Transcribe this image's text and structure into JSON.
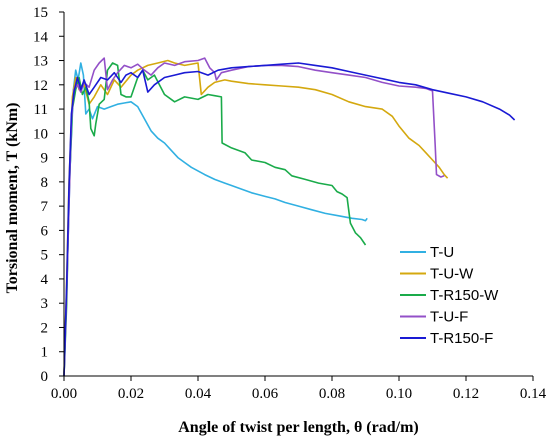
{
  "chart_data": {
    "type": "line",
    "xlabel": "Angle of twist per length, θ (rad/m)",
    "ylabel": "Torsional moment, T (kNm)",
    "xlim": [
      0,
      0.14
    ],
    "ylim": [
      0,
      15
    ],
    "x_ticks": [
      "0.00",
      "0.02",
      "0.04",
      "0.06",
      "0.08",
      "0.10",
      "0.12",
      "0.14"
    ],
    "y_ticks": [
      "0",
      "1",
      "2",
      "3",
      "4",
      "5",
      "6",
      "7",
      "8",
      "9",
      "10",
      "11",
      "12",
      "13",
      "14",
      "15"
    ],
    "grid": false,
    "legend_position": "right",
    "series": [
      {
        "name": "T-U",
        "color": "#31b0e2",
        "points": [
          [
            0,
            0
          ],
          [
            0.0008,
            3.5
          ],
          [
            0.0018,
            8.5
          ],
          [
            0.0028,
            11.8
          ],
          [
            0.0035,
            12.6
          ],
          [
            0.0042,
            12.2
          ],
          [
            0.005,
            12.9
          ],
          [
            0.0058,
            12.4
          ],
          [
            0.0065,
            10.8
          ],
          [
            0.0075,
            11.0
          ],
          [
            0.0085,
            10.6
          ],
          [
            0.01,
            11.1
          ],
          [
            0.012,
            11.0
          ],
          [
            0.014,
            11.1
          ],
          [
            0.016,
            11.2
          ],
          [
            0.018,
            11.25
          ],
          [
            0.02,
            11.3
          ],
          [
            0.022,
            11.1
          ],
          [
            0.024,
            10.6
          ],
          [
            0.026,
            10.1
          ],
          [
            0.028,
            9.8
          ],
          [
            0.03,
            9.6
          ],
          [
            0.032,
            9.3
          ],
          [
            0.034,
            9.0
          ],
          [
            0.036,
            8.8
          ],
          [
            0.038,
            8.6
          ],
          [
            0.04,
            8.45
          ],
          [
            0.042,
            8.3
          ],
          [
            0.045,
            8.1
          ],
          [
            0.048,
            7.95
          ],
          [
            0.05,
            7.85
          ],
          [
            0.053,
            7.7
          ],
          [
            0.056,
            7.55
          ],
          [
            0.06,
            7.4
          ],
          [
            0.063,
            7.3
          ],
          [
            0.066,
            7.15
          ],
          [
            0.07,
            7.0
          ],
          [
            0.074,
            6.85
          ],
          [
            0.078,
            6.7
          ],
          [
            0.082,
            6.6
          ],
          [
            0.086,
            6.5
          ],
          [
            0.089,
            6.45
          ],
          [
            0.09,
            6.4
          ],
          [
            0.0905,
            6.5
          ]
        ]
      },
      {
        "name": "T-U-W",
        "color": "#d4a80f",
        "points": [
          [
            0,
            0
          ],
          [
            0.0008,
            4.0
          ],
          [
            0.0015,
            8.0
          ],
          [
            0.0025,
            11.5
          ],
          [
            0.0035,
            12.3
          ],
          [
            0.0045,
            11.8
          ],
          [
            0.006,
            12.0
          ],
          [
            0.0075,
            11.2
          ],
          [
            0.009,
            11.5
          ],
          [
            0.011,
            12.0
          ],
          [
            0.013,
            11.6
          ],
          [
            0.015,
            12.2
          ],
          [
            0.017,
            11.9
          ],
          [
            0.02,
            12.4
          ],
          [
            0.022,
            12.6
          ],
          [
            0.025,
            12.8
          ],
          [
            0.028,
            12.9
          ],
          [
            0.031,
            13.0
          ],
          [
            0.033,
            12.9
          ],
          [
            0.036,
            12.8
          ],
          [
            0.04,
            12.9
          ],
          [
            0.041,
            11.6
          ],
          [
            0.043,
            11.9
          ],
          [
            0.045,
            12.1
          ],
          [
            0.048,
            12.2
          ],
          [
            0.05,
            12.15
          ],
          [
            0.055,
            12.05
          ],
          [
            0.06,
            12.0
          ],
          [
            0.065,
            11.95
          ],
          [
            0.07,
            11.9
          ],
          [
            0.075,
            11.8
          ],
          [
            0.08,
            11.6
          ],
          [
            0.085,
            11.3
          ],
          [
            0.09,
            11.1
          ],
          [
            0.095,
            11.0
          ],
          [
            0.098,
            10.7
          ],
          [
            0.1,
            10.3
          ],
          [
            0.103,
            9.8
          ],
          [
            0.106,
            9.5
          ],
          [
            0.108,
            9.2
          ],
          [
            0.11,
            8.9
          ],
          [
            0.112,
            8.6
          ],
          [
            0.1135,
            8.3
          ],
          [
            0.1145,
            8.15
          ]
        ]
      },
      {
        "name": "T-R150-W",
        "color": "#1aab4a",
        "points": [
          [
            0,
            0
          ],
          [
            0.0008,
            3.0
          ],
          [
            0.0015,
            7.5
          ],
          [
            0.0025,
            11.0
          ],
          [
            0.0035,
            11.8
          ],
          [
            0.0045,
            12.3
          ],
          [
            0.0055,
            11.6
          ],
          [
            0.0065,
            11.9
          ],
          [
            0.0075,
            11.3
          ],
          [
            0.008,
            10.2
          ],
          [
            0.009,
            9.9
          ],
          [
            0.0095,
            10.4
          ],
          [
            0.0105,
            11.2
          ],
          [
            0.012,
            11.4
          ],
          [
            0.013,
            12.6
          ],
          [
            0.0145,
            12.9
          ],
          [
            0.016,
            12.8
          ],
          [
            0.017,
            11.6
          ],
          [
            0.0185,
            11.5
          ],
          [
            0.02,
            11.5
          ],
          [
            0.022,
            12.3
          ],
          [
            0.0235,
            12.6
          ],
          [
            0.025,
            12.2
          ],
          [
            0.027,
            12.4
          ],
          [
            0.03,
            11.6
          ],
          [
            0.033,
            11.3
          ],
          [
            0.036,
            11.5
          ],
          [
            0.04,
            11.4
          ],
          [
            0.043,
            11.6
          ],
          [
            0.045,
            11.55
          ],
          [
            0.047,
            11.5
          ],
          [
            0.0472,
            9.6
          ],
          [
            0.05,
            9.4
          ],
          [
            0.054,
            9.2
          ],
          [
            0.056,
            8.9
          ],
          [
            0.06,
            8.8
          ],
          [
            0.063,
            8.6
          ],
          [
            0.066,
            8.5
          ],
          [
            0.068,
            8.25
          ],
          [
            0.072,
            8.1
          ],
          [
            0.076,
            7.95
          ],
          [
            0.08,
            7.85
          ],
          [
            0.0815,
            7.6
          ],
          [
            0.083,
            7.5
          ],
          [
            0.0845,
            7.35
          ],
          [
            0.0855,
            6.3
          ],
          [
            0.087,
            5.9
          ],
          [
            0.0885,
            5.7
          ],
          [
            0.0895,
            5.5
          ],
          [
            0.09,
            5.4
          ]
        ]
      },
      {
        "name": "T-U-F",
        "color": "#9350c8",
        "points": [
          [
            0,
            0
          ],
          [
            0.0008,
            3.5
          ],
          [
            0.0015,
            7.0
          ],
          [
            0.0022,
            10.5
          ],
          [
            0.003,
            11.8
          ],
          [
            0.004,
            12.0
          ],
          [
            0.005,
            11.7
          ],
          [
            0.006,
            12.1
          ],
          [
            0.0075,
            11.9
          ],
          [
            0.009,
            12.6
          ],
          [
            0.0105,
            12.9
          ],
          [
            0.012,
            13.1
          ],
          [
            0.013,
            11.8
          ],
          [
            0.0145,
            12.2
          ],
          [
            0.016,
            12.5
          ],
          [
            0.018,
            12.8
          ],
          [
            0.02,
            12.7
          ],
          [
            0.022,
            12.85
          ],
          [
            0.024,
            12.6
          ],
          [
            0.026,
            12.4
          ],
          [
            0.028,
            12.7
          ],
          [
            0.03,
            12.9
          ],
          [
            0.033,
            12.8
          ],
          [
            0.036,
            12.95
          ],
          [
            0.04,
            13.0
          ],
          [
            0.042,
            13.1
          ],
          [
            0.0435,
            12.7
          ],
          [
            0.045,
            12.5
          ],
          [
            0.0455,
            12.2
          ],
          [
            0.047,
            12.5
          ],
          [
            0.05,
            12.6
          ],
          [
            0.055,
            12.75
          ],
          [
            0.06,
            12.8
          ],
          [
            0.065,
            12.8
          ],
          [
            0.07,
            12.75
          ],
          [
            0.075,
            12.6
          ],
          [
            0.08,
            12.5
          ],
          [
            0.085,
            12.4
          ],
          [
            0.09,
            12.3
          ],
          [
            0.095,
            12.1
          ],
          [
            0.1,
            11.95
          ],
          [
            0.105,
            11.9
          ],
          [
            0.108,
            11.85
          ],
          [
            0.11,
            11.75
          ],
          [
            0.1108,
            9.5
          ],
          [
            0.1112,
            8.3
          ],
          [
            0.1125,
            8.2
          ],
          [
            0.1135,
            8.25
          ]
        ]
      },
      {
        "name": "T-R150-F",
        "color": "#1a1ad4",
        "points": [
          [
            0,
            0
          ],
          [
            0.0008,
            3.8
          ],
          [
            0.0015,
            7.8
          ],
          [
            0.0022,
            10.8
          ],
          [
            0.003,
            11.7
          ],
          [
            0.004,
            12.3
          ],
          [
            0.005,
            11.8
          ],
          [
            0.006,
            12.2
          ],
          [
            0.0075,
            11.6
          ],
          [
            0.009,
            11.9
          ],
          [
            0.011,
            12.3
          ],
          [
            0.013,
            12.2
          ],
          [
            0.015,
            12.5
          ],
          [
            0.017,
            12.1
          ],
          [
            0.0185,
            12.4
          ],
          [
            0.02,
            12.5
          ],
          [
            0.022,
            12.3
          ],
          [
            0.0235,
            12.6
          ],
          [
            0.025,
            11.7
          ],
          [
            0.027,
            12.0
          ],
          [
            0.03,
            12.3
          ],
          [
            0.033,
            12.4
          ],
          [
            0.036,
            12.5
          ],
          [
            0.04,
            12.55
          ],
          [
            0.043,
            12.4
          ],
          [
            0.046,
            12.6
          ],
          [
            0.05,
            12.7
          ],
          [
            0.055,
            12.75
          ],
          [
            0.06,
            12.8
          ],
          [
            0.065,
            12.85
          ],
          [
            0.07,
            12.9
          ],
          [
            0.075,
            12.8
          ],
          [
            0.08,
            12.7
          ],
          [
            0.085,
            12.55
          ],
          [
            0.09,
            12.4
          ],
          [
            0.095,
            12.25
          ],
          [
            0.1,
            12.1
          ],
          [
            0.105,
            12.0
          ],
          [
            0.11,
            11.8
          ],
          [
            0.115,
            11.65
          ],
          [
            0.12,
            11.5
          ],
          [
            0.125,
            11.3
          ],
          [
            0.13,
            11.0
          ],
          [
            0.133,
            10.75
          ],
          [
            0.1345,
            10.55
          ]
        ]
      }
    ]
  }
}
